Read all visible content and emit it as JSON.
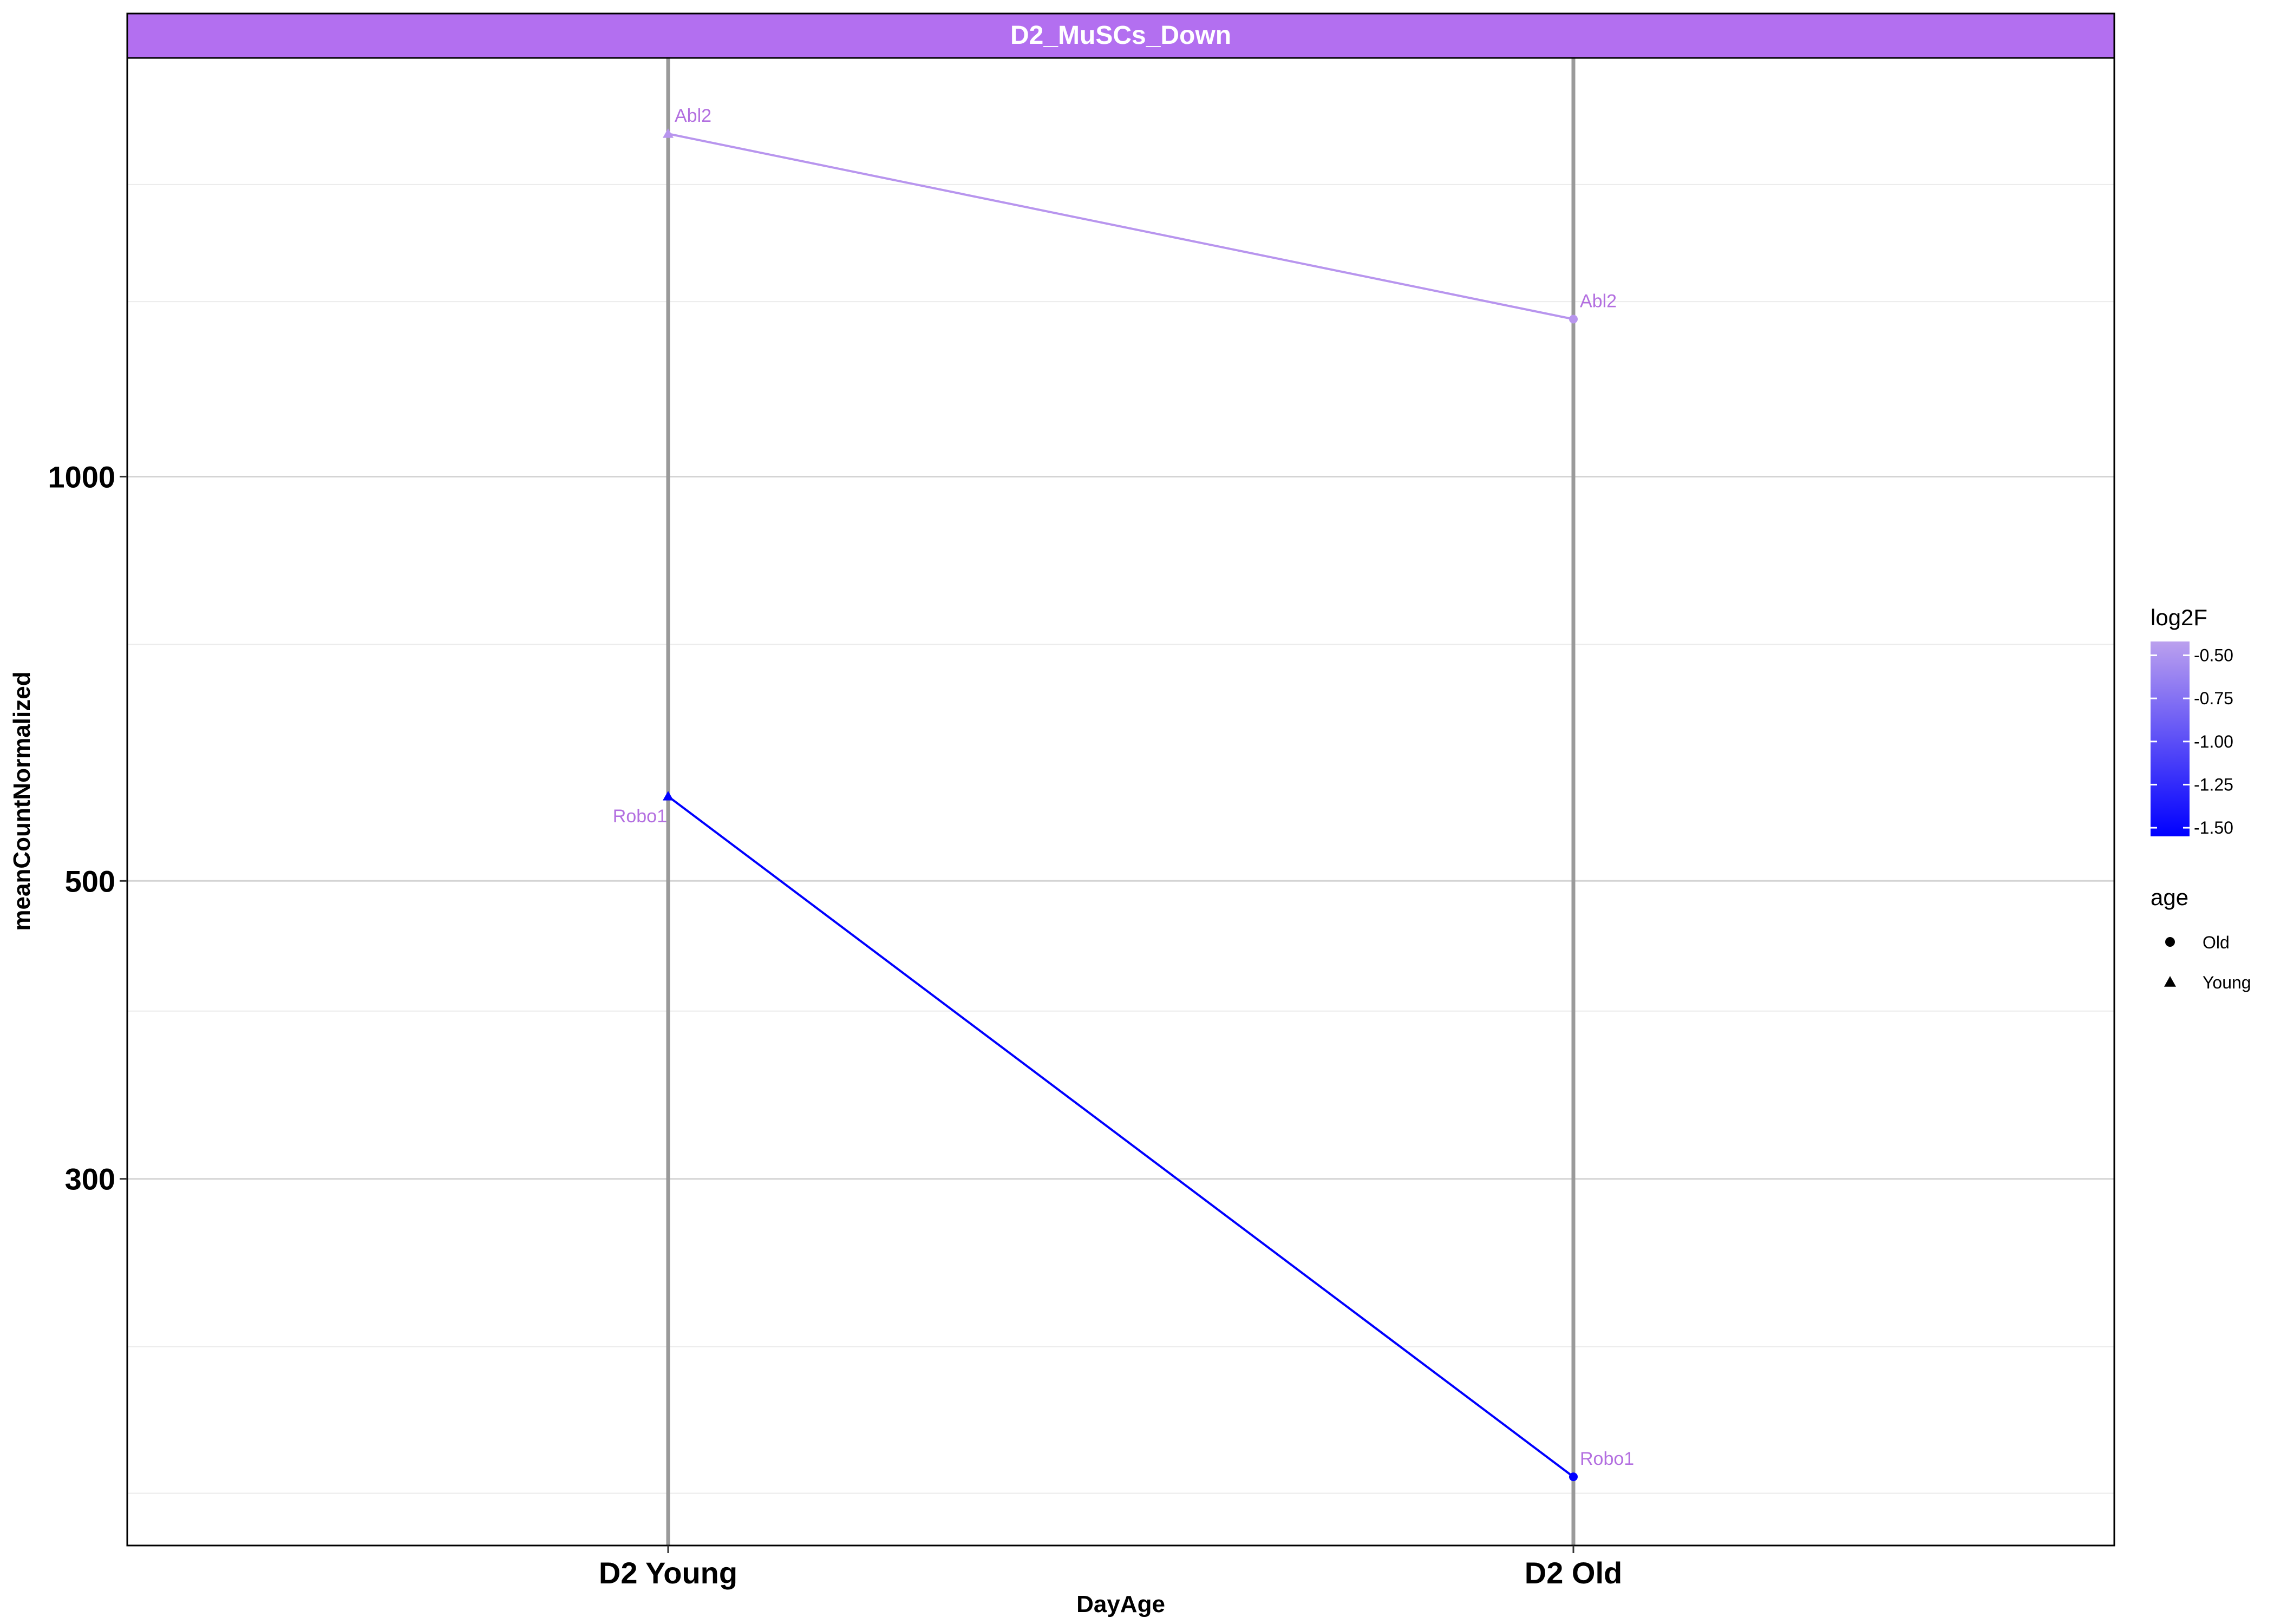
{
  "chart_data": {
    "type": "line",
    "facet_title": "D2_MuSCs_Down",
    "xlabel": "DayAge",
    "ylabel": "meanCountNormalized",
    "y_scale": "log10",
    "ylim": [
      160,
      2050
    ],
    "yticks": [
      {
        "value": 300,
        "label": "300"
      },
      {
        "value": 500,
        "label": "500"
      },
      {
        "value": 1000,
        "label": "1000"
      }
    ],
    "y_minor_gridlines": [
      175,
      225,
      400,
      750,
      1350,
      1650
    ],
    "categories": [
      "D2 Young",
      "D2 Old"
    ],
    "series": [
      {
        "gene": "Abl2",
        "log2F": -0.42,
        "color": "#b895ee",
        "points": [
          {
            "x": "D2 Young",
            "y": 1800,
            "age": "Young",
            "label": "Abl2"
          },
          {
            "x": "D2 Old",
            "y": 1310,
            "age": "Old",
            "label": "Abl2"
          }
        ]
      },
      {
        "gene": "Robo1",
        "log2F": -1.5,
        "color": "#0000ff",
        "points": [
          {
            "x": "D2 Young",
            "y": 578,
            "age": "Young",
            "label": "Robo1"
          },
          {
            "x": "D2 Old",
            "y": 180,
            "age": "Old",
            "label": "Robo1"
          }
        ]
      }
    ],
    "label_color": "#b36fe0",
    "colorbar": {
      "title": "log2F",
      "range": [
        -1.55,
        -0.42
      ],
      "low_color": "#0000ff",
      "high_color": "#bba0ee",
      "ticks": [
        {
          "value": -0.5,
          "label": "-0.50"
        },
        {
          "value": -0.75,
          "label": "-0.75"
        },
        {
          "value": -1.0,
          "label": "-1.00"
        },
        {
          "value": -1.25,
          "label": "-1.25"
        },
        {
          "value": -1.5,
          "label": "-1.50"
        }
      ]
    },
    "shape_legend": {
      "title": "age",
      "items": [
        {
          "label": "Old",
          "shape": "circle"
        },
        {
          "label": "Young",
          "shape": "triangle"
        }
      ]
    },
    "strip_color": "#b36ff0",
    "grid": true,
    "legend_position": "right"
  }
}
